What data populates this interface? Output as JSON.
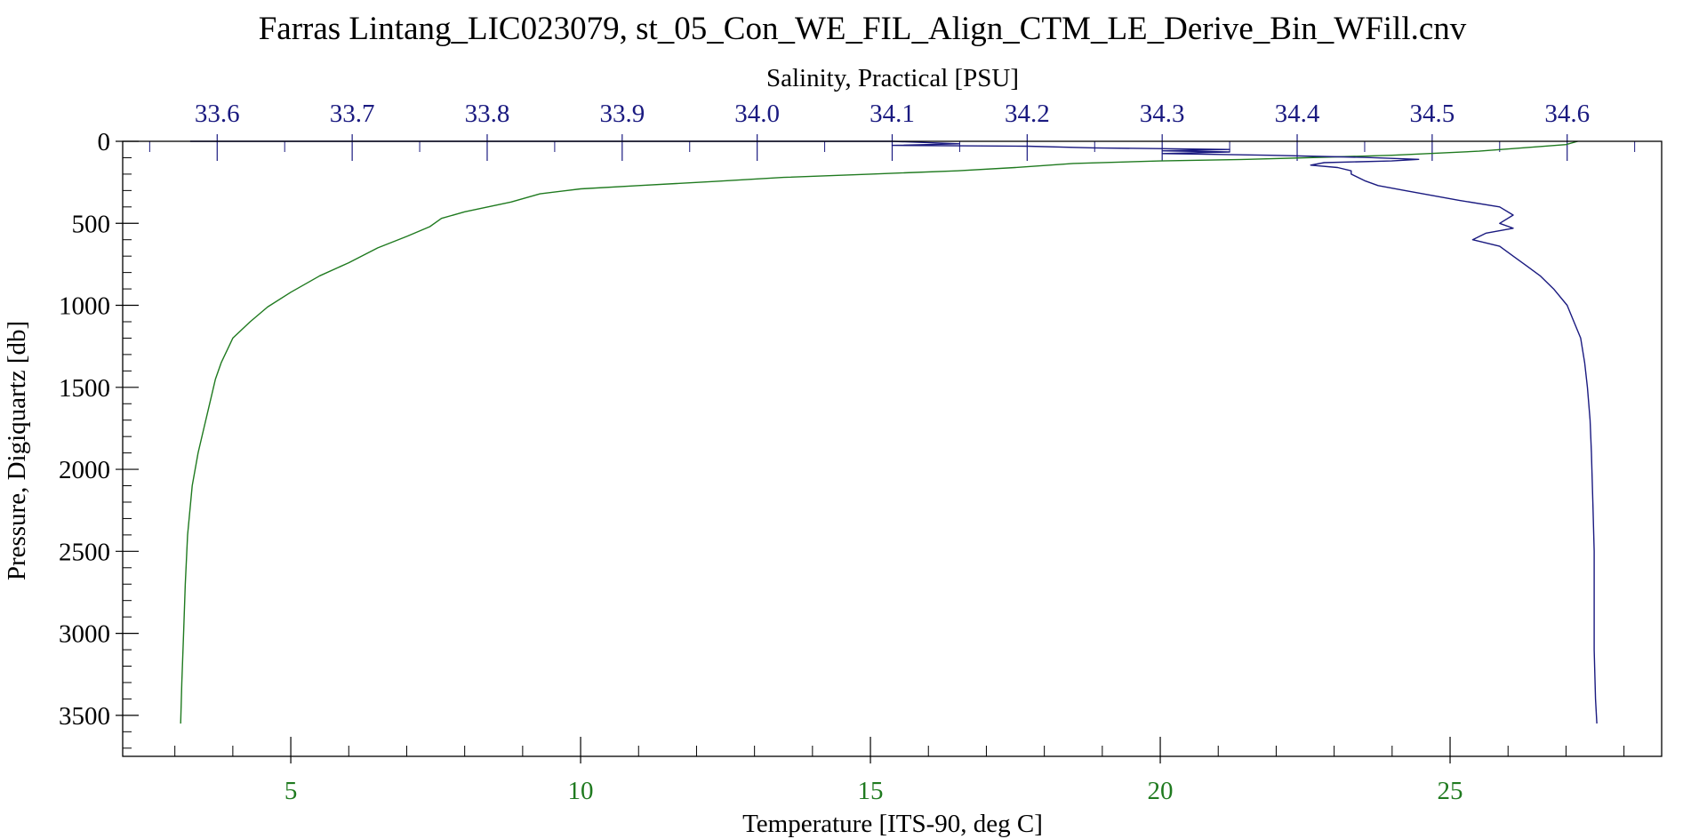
{
  "chart_data": {
    "type": "line",
    "title": "Farras Lintang_LIC023079, st_05_Con_WE_FIL_Align_CTM_LE_Derive_Bin_WFill.cnv",
    "colors": {
      "salinity": "#1a1a80",
      "temperature": "#1f7a1f",
      "pressure": "#000000",
      "frame": "#000000"
    },
    "axes": {
      "pressure": {
        "label": "Pressure, Digiquartz [db]",
        "range": [
          0,
          3750
        ],
        "inverted": true,
        "ticks": [
          "0",
          "500",
          "1000",
          "1500",
          "2000",
          "2500",
          "3000",
          "3500"
        ],
        "tick_values": [
          0,
          500,
          1000,
          1500,
          2000,
          2500,
          3000,
          3500
        ],
        "minor_step": 100
      },
      "salinity": {
        "label": "Salinity, Practical [PSU]",
        "range": [
          33.53,
          34.67
        ],
        "ticks": [
          "33.6",
          "33.7",
          "33.8",
          "33.9",
          "34.0",
          "34.1",
          "34.2",
          "34.3",
          "34.4",
          "34.5",
          "34.6"
        ],
        "tick_values": [
          33.6,
          33.7,
          33.8,
          33.9,
          34.0,
          34.1,
          34.2,
          34.3,
          34.4,
          34.5,
          34.6
        ],
        "minor_step": 0.05
      },
      "temperature": {
        "label": "Temperature [ITS-90, deg C]",
        "range": [
          2.1,
          28.65
        ],
        "ticks": [
          "5",
          "10",
          "15",
          "20",
          "25"
        ],
        "tick_values": [
          5,
          10,
          15,
          20,
          25
        ],
        "minor_step": 1
      }
    },
    "series": [
      {
        "name": "Temperature [ITS-90, deg C]",
        "axis": "temperature",
        "points": [
          [
            27.2,
            0
          ],
          [
            27.0,
            20
          ],
          [
            25.5,
            60
          ],
          [
            24.0,
            85
          ],
          [
            22.5,
            100
          ],
          [
            21.5,
            110
          ],
          [
            20.0,
            120
          ],
          [
            18.5,
            135
          ],
          [
            17.5,
            160
          ],
          [
            16.5,
            180
          ],
          [
            15.0,
            200
          ],
          [
            13.5,
            220
          ],
          [
            12.3,
            245
          ],
          [
            11.0,
            270
          ],
          [
            10.0,
            290
          ],
          [
            9.3,
            320
          ],
          [
            8.8,
            370
          ],
          [
            8.0,
            430
          ],
          [
            7.6,
            470
          ],
          [
            7.4,
            520
          ],
          [
            7.0,
            580
          ],
          [
            6.5,
            650
          ],
          [
            6.0,
            740
          ],
          [
            5.5,
            820
          ],
          [
            5.0,
            920
          ],
          [
            4.6,
            1010
          ],
          [
            4.3,
            1100
          ],
          [
            4.0,
            1200
          ],
          [
            3.8,
            1350
          ],
          [
            3.7,
            1450
          ],
          [
            3.6,
            1600
          ],
          [
            3.5,
            1750
          ],
          [
            3.4,
            1900
          ],
          [
            3.3,
            2100
          ],
          [
            3.22,
            2400
          ],
          [
            3.18,
            2700
          ],
          [
            3.15,
            3000
          ],
          [
            3.12,
            3300
          ],
          [
            3.1,
            3550
          ]
        ]
      },
      {
        "name": "Salinity, Practical [PSU]",
        "axis": "salinity",
        "points": [
          [
            33.58,
            0
          ],
          [
            34.05,
            0
          ],
          [
            34.1,
            0
          ],
          [
            34.15,
            15
          ],
          [
            34.1,
            25
          ],
          [
            34.2,
            30
          ],
          [
            34.25,
            40
          ],
          [
            34.35,
            50
          ],
          [
            34.3,
            58
          ],
          [
            34.35,
            65
          ],
          [
            34.3,
            75
          ],
          [
            34.38,
            85
          ],
          [
            34.45,
            98
          ],
          [
            34.49,
            110
          ],
          [
            34.47,
            120
          ],
          [
            34.42,
            130
          ],
          [
            34.41,
            145
          ],
          [
            34.43,
            160
          ],
          [
            34.44,
            180
          ],
          [
            34.44,
            200
          ],
          [
            34.45,
            240
          ],
          [
            34.46,
            270
          ],
          [
            34.48,
            300
          ],
          [
            34.5,
            330
          ],
          [
            34.52,
            360
          ],
          [
            34.55,
            400
          ],
          [
            34.56,
            450
          ],
          [
            34.55,
            500
          ],
          [
            34.56,
            530
          ],
          [
            34.54,
            560
          ],
          [
            34.53,
            600
          ],
          [
            34.55,
            640
          ],
          [
            34.56,
            700
          ],
          [
            34.57,
            760
          ],
          [
            34.58,
            820
          ],
          [
            34.59,
            900
          ],
          [
            34.6,
            1000
          ],
          [
            34.605,
            1100
          ],
          [
            34.61,
            1200
          ],
          [
            34.613,
            1350
          ],
          [
            34.615,
            1500
          ],
          [
            34.617,
            1700
          ],
          [
            34.618,
            1900
          ],
          [
            34.619,
            2200
          ],
          [
            34.62,
            2500
          ],
          [
            34.62,
            2800
          ],
          [
            34.62,
            3100
          ],
          [
            34.621,
            3400
          ],
          [
            34.622,
            3550
          ]
        ]
      }
    ]
  }
}
